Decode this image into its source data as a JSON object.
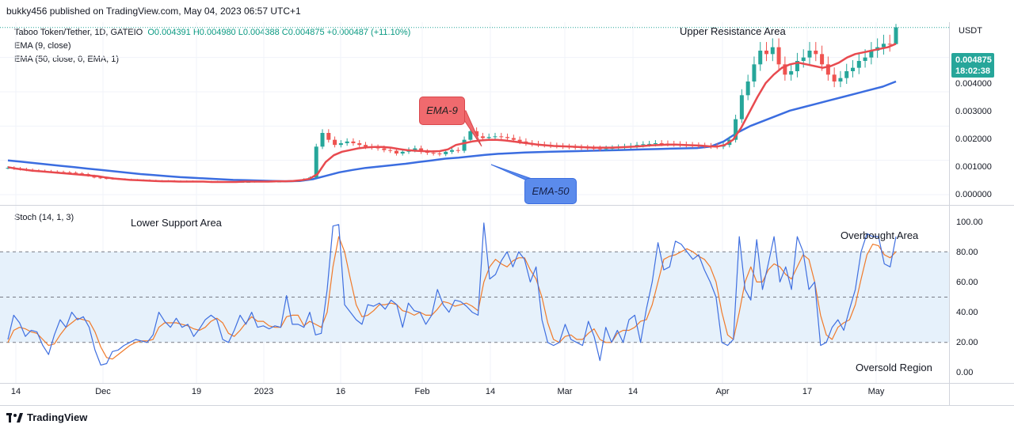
{
  "publisher_line": "bukky456 published on TradingView.com, May 04, 2023 06:57 UTC+1",
  "legend": {
    "symbol": "Taboo Token/Tether, 1D, GATEIO",
    "ohlc": "O0.004391 H0.004980 L0.004388 C0.004875 +0.000487 (+11.10%)",
    "ema9": "EMA (9, close)",
    "ema50": "EMA (50, close, 0, EMA, 1)",
    "stoch": "Stoch (14, 1, 3)"
  },
  "price_scale": {
    "unit": "USDT",
    "ticks": [
      "0.004000",
      "0.003000",
      "0.002000",
      "0.001000",
      "0.000000"
    ],
    "last_price": "0.004875",
    "countdown": "18:02:38"
  },
  "stoch_scale": {
    "ticks": [
      "100.00",
      "80.00",
      "60.00",
      "40.00",
      "20.00",
      "0.00"
    ]
  },
  "x_axis": {
    "ticks": [
      "14",
      "Dec",
      "19",
      "2023",
      "16",
      "Feb",
      "14",
      "Mar",
      "14",
      "Apr",
      "17",
      "May"
    ]
  },
  "annotations": {
    "upper_resistance": "Upper Resistance Area",
    "lower_support": "Lower Support Area",
    "overbought": "Overbought Area",
    "oversold": "Oversold Region",
    "ema9_callout": "EMA-9",
    "ema50_callout": "EMA-50"
  },
  "footer": {
    "brand": "TradingView"
  },
  "colors": {
    "up": "#26a69a",
    "down": "#ef5350",
    "ema9": "#e84a4f",
    "ema50": "#3b6de0",
    "stoch_k": "#3f6fe0",
    "stoch_d": "#f07a2a",
    "stoch_band": "#e6f1fb"
  },
  "chart_data": [
    {
      "type": "candlestick",
      "title": "Taboo Token/Tether, 1D, GATEIO",
      "y_unit": "USDT",
      "ylim": [
        0,
        0.0048
      ],
      "x_range": [
        "2022-11-14",
        "2023-05-04"
      ],
      "x_ticks": [
        "14",
        "Dec",
        "19",
        "2023",
        "16",
        "Feb",
        "14",
        "Mar",
        "14",
        "Apr",
        "17",
        "May"
      ],
      "last_candle": {
        "open": 0.004391,
        "high": 0.00498,
        "low": 0.004388,
        "close": 0.004875,
        "change": 0.000487,
        "change_pct": 11.1
      },
      "close_approx": [
        0.00078,
        0.00076,
        0.00074,
        0.00072,
        0.0007,
        0.00069,
        0.00068,
        0.00067,
        0.00066,
        0.00065,
        0.00064,
        0.00062,
        0.0006,
        0.00055,
        0.0005,
        0.00048,
        0.00047,
        0.00046,
        0.00045,
        0.00044,
        0.00043,
        0.00042,
        0.00042,
        0.00041,
        0.0004,
        0.0004,
        0.0004,
        0.00039,
        0.00039,
        0.00039,
        0.00038,
        0.00038,
        0.00038,
        0.00038,
        0.00037,
        0.00037,
        0.00037,
        0.00037,
        0.00037,
        0.00037,
        0.00038,
        0.00038,
        0.00038,
        0.00038,
        0.00038,
        0.00039,
        0.00039,
        0.00041,
        0.00045,
        0.0005,
        0.0014,
        0.0018,
        0.0016,
        0.00145,
        0.0015,
        0.00155,
        0.0015,
        0.00145,
        0.0014,
        0.00138,
        0.00135,
        0.0013,
        0.00128,
        0.0012,
        0.00125,
        0.0013,
        0.00135,
        0.00125,
        0.00122,
        0.0012,
        0.00118,
        0.00125,
        0.0013,
        0.00128,
        0.0016,
        0.00185,
        0.0017,
        0.00165,
        0.00168,
        0.0017,
        0.00168,
        0.00165,
        0.0016,
        0.00155,
        0.0015,
        0.00148,
        0.00146,
        0.00145,
        0.00143,
        0.00142,
        0.0014,
        0.00139,
        0.00138,
        0.00137,
        0.00136,
        0.00135,
        0.00134,
        0.00135,
        0.00136,
        0.00138,
        0.0014,
        0.00142,
        0.00145,
        0.00147,
        0.00148,
        0.0015,
        0.00149,
        0.00148,
        0.00147,
        0.00146,
        0.00145,
        0.00144,
        0.00143,
        0.00142,
        0.00141,
        0.0014,
        0.00145,
        0.0016,
        0.0022,
        0.0029,
        0.0033,
        0.0038,
        0.0042,
        0.0041,
        0.0043,
        0.0038,
        0.0035,
        0.0036,
        0.0039,
        0.004,
        0.0042,
        0.0041,
        0.0038,
        0.0035,
        0.0033,
        0.0034,
        0.0036,
        0.0037,
        0.0039,
        0.004,
        0.0042,
        0.0043,
        0.0044,
        0.00439,
        0.00488
      ],
      "series": [
        {
          "name": "EMA (9, close)",
          "values_approx": [
            0.0008,
            0.00076,
            0.00073,
            0.0007,
            0.00068,
            0.00066,
            0.00064,
            0.00062,
            0.0006,
            0.00058,
            0.00056,
            0.00054,
            0.0005,
            0.00047,
            0.00045,
            0.00043,
            0.00042,
            0.00041,
            0.0004,
            0.00039,
            0.00039,
            0.00038,
            0.00038,
            0.00038,
            0.00038,
            0.00037,
            0.00037,
            0.00037,
            0.00037,
            0.00038,
            0.00038,
            0.00038,
            0.00038,
            0.00039,
            0.00039,
            0.0004,
            0.00042,
            0.00046,
            0.0006,
            0.00095,
            0.00115,
            0.00125,
            0.0013,
            0.00135,
            0.00138,
            0.00139,
            0.00139,
            0.00137,
            0.00133,
            0.0013,
            0.00128,
            0.00127,
            0.00126,
            0.00127,
            0.00132,
            0.00145,
            0.0015,
            0.00155,
            0.00158,
            0.0016,
            0.0016,
            0.00158,
            0.00155,
            0.00152,
            0.00149,
            0.00146,
            0.00144,
            0.00142,
            0.00141,
            0.0014,
            0.00139,
            0.00138,
            0.00137,
            0.00137,
            0.00137,
            0.00138,
            0.00139,
            0.0014,
            0.00142,
            0.00144,
            0.00145,
            0.00146,
            0.00146,
            0.00145,
            0.00144,
            0.00143,
            0.00141,
            0.0014,
            0.00145,
            0.0016,
            0.00195,
            0.0024,
            0.00285,
            0.00325,
            0.0035,
            0.0037,
            0.0038,
            0.00385,
            0.0038,
            0.00375,
            0.0037,
            0.00375,
            0.00385,
            0.004,
            0.0041,
            0.00415,
            0.0042,
            0.00425,
            0.0043,
            0.0044
          ]
        },
        {
          "name": "EMA (50, close, 0, EMA, 1)",
          "values_approx": [
            0.001,
            0.00096,
            0.00092,
            0.00088,
            0.00084,
            0.0008,
            0.00076,
            0.00072,
            0.00068,
            0.00064,
            0.0006,
            0.00057,
            0.00054,
            0.00051,
            0.00049,
            0.00047,
            0.00045,
            0.00043,
            0.00042,
            0.00041,
            0.0004,
            0.00039,
            0.0004,
            0.00045,
            0.00055,
            0.00065,
            0.00072,
            0.00078,
            0.00082,
            0.00086,
            0.0009,
            0.00095,
            0.001,
            0.00105,
            0.00108,
            0.00112,
            0.00116,
            0.00119,
            0.00121,
            0.00123,
            0.00124,
            0.00125,
            0.00126,
            0.00127,
            0.00128,
            0.00129,
            0.0013,
            0.00131,
            0.00132,
            0.00133,
            0.00134,
            0.00135,
            0.00136,
            0.0014,
            0.00155,
            0.0018,
            0.002,
            0.00215,
            0.0023,
            0.00245,
            0.00255,
            0.00265,
            0.00275,
            0.00285,
            0.00295,
            0.00305,
            0.00315,
            0.0033
          ]
        }
      ]
    },
    {
      "type": "line",
      "title": "Stoch (14, 1, 3)",
      "ylim": [
        0,
        100
      ],
      "y_ticks": [
        100,
        80,
        60,
        40,
        20,
        0
      ],
      "band": [
        20,
        80
      ],
      "midline": 50,
      "series": [
        {
          "name": "%K",
          "values": [
            22,
            38,
            33,
            24,
            28,
            27,
            18,
            12,
            25,
            35,
            30,
            40,
            35,
            37,
            30,
            15,
            5,
            6,
            14,
            15,
            18,
            20,
            22,
            21,
            20,
            25,
            40,
            34,
            30,
            36,
            30,
            32,
            24,
            29,
            35,
            38,
            35,
            22,
            20,
            28,
            38,
            32,
            40,
            30,
            31,
            29,
            31,
            30,
            51,
            32,
            32,
            30,
            40,
            25,
            26,
            55,
            97,
            98,
            45,
            40,
            35,
            32,
            45,
            44,
            46,
            42,
            48,
            45,
            30,
            46,
            41,
            40,
            32,
            38,
            55,
            45,
            40,
            48,
            47,
            44,
            40,
            38,
            99,
            62,
            65,
            74,
            80,
            70,
            80,
            75,
            60,
            70,
            35,
            20,
            18,
            20,
            32,
            22,
            20,
            18,
            34,
            24,
            8,
            30,
            20,
            28,
            20,
            35,
            38,
            20,
            42,
            60,
            86,
            68,
            70,
            87,
            85,
            80,
            75,
            78,
            68,
            60,
            50,
            20,
            18,
            22,
            90,
            55,
            48,
            88,
            55,
            72,
            90,
            60,
            70,
            55,
            90,
            80,
            55,
            60,
            18,
            20,
            30,
            35,
            28,
            42,
            55,
            80,
            92,
            90,
            90,
            72,
            70,
            90
          ]
        },
        {
          "name": "%D",
          "values": [
            20,
            28,
            30,
            29,
            27,
            26,
            22,
            18,
            19,
            25,
            30,
            33,
            36,
            35,
            34,
            27,
            17,
            10,
            9,
            12,
            15,
            18,
            20,
            21,
            21,
            22,
            30,
            33,
            33,
            33,
            32,
            31,
            29,
            28,
            30,
            34,
            36,
            33,
            26,
            24,
            28,
            33,
            37,
            34,
            34,
            31,
            30,
            30,
            37,
            38,
            38,
            31,
            34,
            32,
            30,
            40,
            70,
            90,
            80,
            62,
            45,
            37,
            38,
            41,
            45,
            45,
            46,
            45,
            41,
            40,
            38,
            40,
            38,
            38,
            42,
            47,
            46,
            44,
            45,
            46,
            44,
            41,
            60,
            70,
            75,
            72,
            70,
            74,
            76,
            76,
            68,
            62,
            50,
            33,
            22,
            20,
            24,
            25,
            22,
            22,
            26,
            29,
            22,
            20,
            20,
            26,
            28,
            28,
            30,
            34,
            35,
            45,
            60,
            75,
            77,
            78,
            80,
            82,
            80,
            77,
            75,
            70,
            60,
            40,
            25,
            22,
            40,
            60,
            70,
            60,
            60,
            68,
            72,
            70,
            65,
            62,
            70,
            78,
            75,
            60,
            38,
            25,
            22,
            30,
            33,
            35,
            45,
            62,
            78,
            85,
            84,
            78,
            76,
            80
          ]
        }
      ]
    }
  ]
}
